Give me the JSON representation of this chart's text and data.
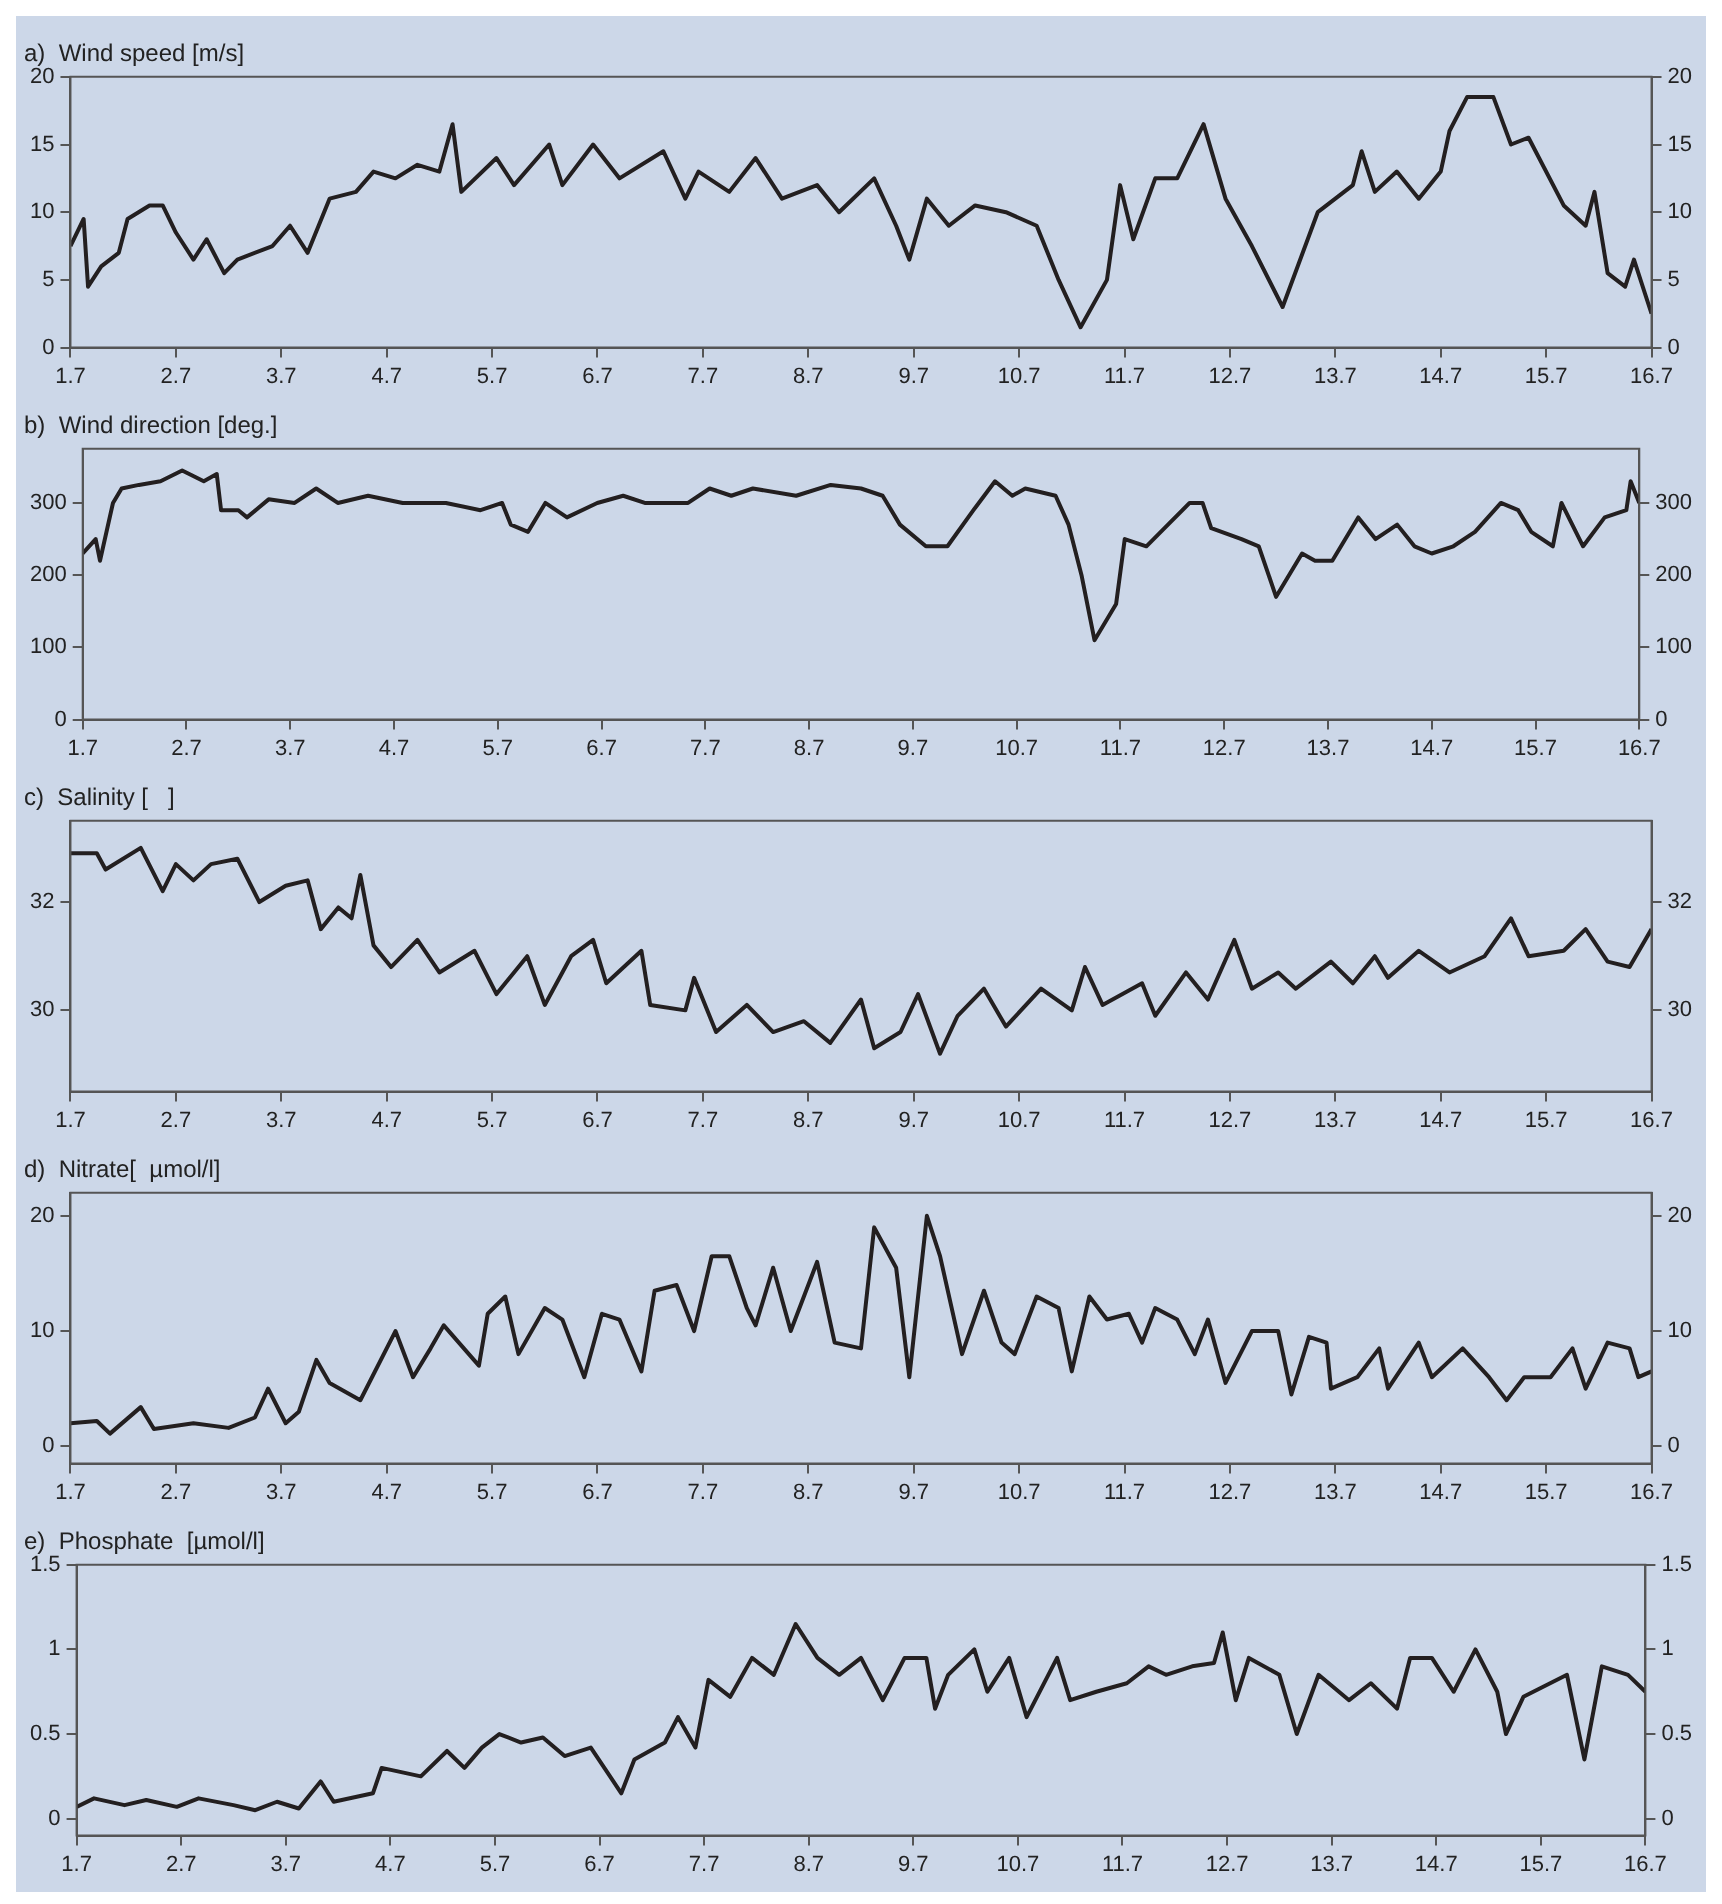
{
  "chart_data": [
    {
      "type": "line",
      "title": "a)  Wind speed [m/s]",
      "color": "#231f20",
      "x": [
        "--07-01T00:00",
        "--07-01T03:00",
        "--07-01T04:00",
        "--07-01T07:00",
        "--07-01T11:00",
        "--07-01T13:00",
        "--07-01T18:00",
        "--07-01T21:00",
        "--07-02T00:00",
        "--07-02T04:00",
        "--07-02T07:00",
        "--07-02T11:00",
        "--07-02T14:00",
        "--07-02T22:00",
        "--07-03T02:00",
        "--07-03T06:00",
        "--07-03T11:00",
        "--07-03T17:00",
        "--07-03T21:00",
        "--07-04T02:00",
        "--07-04T07:00",
        "--07-04T12:00",
        "--07-04T15:00",
        "--07-04T17:00",
        "--07-05T01:00",
        "--07-05T05:00",
        "--07-05T13:00",
        "--07-05T16:00",
        "--07-05T23:00",
        "--07-06T05:00",
        "--07-06T15:00",
        "--07-06T20:00",
        "--07-06T23:00",
        "--07-07T06:00",
        "--07-07T12:00",
        "--07-07T18:00",
        "--07-08T02:00",
        "--07-08T07:00",
        "--07-08T15:00",
        "--07-08T20:00",
        "--07-08T23:00",
        "--07-09T03:00",
        "--07-09T08:00",
        "--07-09T14:00",
        "--07-09T21:00",
        "--07-10T04:00",
        "--07-10T09:00",
        "--07-10T14:00",
        "--07-10T20:00",
        "--07-10T23:00",
        "--07-11T02:00",
        "--07-11T07:00",
        "--07-11T12:00",
        "--07-11T18:00",
        "--07-11T23:00",
        "--07-12T05:00",
        "--07-12T12:00",
        "--07-12T20:00",
        "--07-13T04:00",
        "--07-13T06:00",
        "--07-13T09:00",
        "--07-13T14:00",
        "--07-13T19:00",
        "--07-14T00:00",
        "--07-14T02:00",
        "--07-14T06:00",
        "--07-14T12:00",
        "--07-14T16:00",
        "--07-14T20:00",
        "--07-15T04:00",
        "--07-15T09:00",
        "--07-15T11:00",
        "--07-15T14:00",
        "--07-15T18:00",
        "--07-15T20:00",
        "--07-16T00:00"
      ],
      "values": [
        7.5,
        9.5,
        4.5,
        6,
        7,
        9.5,
        10.5,
        10.5,
        8.5,
        6.5,
        8,
        5.5,
        6.5,
        7.5,
        9,
        7,
        11,
        11.5,
        13,
        12.5,
        13.5,
        13,
        16.5,
        11.5,
        14,
        12,
        15,
        12,
        15,
        12.5,
        14.5,
        11,
        13,
        11.5,
        14,
        11,
        12,
        10,
        12.5,
        9,
        6.5,
        11,
        9,
        10.5,
        10,
        9,
        5,
        1.5,
        5,
        12,
        8,
        12.5,
        12.5,
        16.5,
        11,
        7.5,
        3,
        10,
        12,
        14.5,
        11.5,
        13,
        11,
        13,
        16,
        18.5,
        18.5,
        15,
        15.5,
        10.5,
        9,
        11.5,
        5.5,
        4.5,
        6.5,
        2.5
      ],
      "xlim": [
        "--07-01",
        "--07-16"
      ],
      "xticks": [
        {
          "value": "--07-01",
          "label": "1.7"
        },
        {
          "value": "--07-02",
          "label": "2.7"
        },
        {
          "value": "--07-03",
          "label": "3.7"
        },
        {
          "value": "--07-04",
          "label": "4.7"
        },
        {
          "value": "--07-05",
          "label": "5.7"
        },
        {
          "value": "--07-06",
          "label": "6.7"
        },
        {
          "value": "--07-07",
          "label": "7.7"
        },
        {
          "value": "--07-08",
          "label": "8.7"
        },
        {
          "value": "--07-09",
          "label": "9.7"
        },
        {
          "value": "--07-10",
          "label": "10.7"
        },
        {
          "value": "--07-11",
          "label": "11.7"
        },
        {
          "value": "--07-12",
          "label": "12.7"
        },
        {
          "value": "--07-13",
          "label": "13.7"
        },
        {
          "value": "--07-14",
          "label": "14.7"
        },
        {
          "value": "--07-15",
          "label": "15.7"
        },
        {
          "value": "--07-16",
          "label": "16.7"
        }
      ],
      "ylim": [
        0,
        20
      ],
      "yticks": [
        0,
        5,
        10,
        15,
        20
      ],
      "y2lim": [
        0,
        20
      ],
      "y2ticks": [
        0,
        5,
        10,
        15,
        20
      ]
    },
    {
      "type": "line",
      "title": "b)  Wind direction [deg.]",
      "color": "#231f20",
      "x": [
        "--07-01T00:00",
        "--07-01T03:00",
        "--07-01T04:00",
        "--07-01T07:00",
        "--07-01T09:00",
        "--07-01T13:00",
        "--07-01T18:00",
        "--07-01T23:00",
        "--07-02T04:00",
        "--07-02T07:00",
        "--07-02T08:00",
        "--07-02T12:00",
        "--07-02T14:00",
        "--07-02T19:00",
        "--07-03T01:00",
        "--07-03T06:00",
        "--07-03T11:00",
        "--07-03T18:00",
        "--07-04T02:00",
        "--07-04T12:00",
        "--07-04T20:00",
        "--07-05T01:00",
        "--07-05T03:00",
        "--07-05T07:00",
        "--07-05T11:00",
        "--07-05T16:00",
        "--07-05T23:00",
        "--07-06T05:00",
        "--07-06T10:00",
        "--07-06T20:00",
        "--07-07T01:00",
        "--07-07T06:00",
        "--07-07T11:00",
        "--07-07T21:00",
        "--07-08T05:00",
        "--07-08T12:00",
        "--07-08T17:00",
        "--07-08T21:00",
        "--07-09T03:00",
        "--07-09T08:00",
        "--07-09T14:00",
        "--07-09T19:00",
        "--07-09T23:00",
        "--07-10T02:00",
        "--07-10T09:00",
        "--07-10T12:00",
        "--07-10T15:00",
        "--07-10T18:00",
        "--07-10T23:00",
        "--07-11T01:00",
        "--07-11T06:00",
        "--07-11T11:00",
        "--07-11T16:00",
        "--07-11T19:00",
        "--07-11T21:00",
        "--07-12T04:00",
        "--07-12T08:00",
        "--07-12T12:00",
        "--07-12T18:00",
        "--07-12T21:00",
        "--07-13T01:00",
        "--07-13T07:00",
        "--07-13T11:00",
        "--07-13T16:00",
        "--07-13T20:00",
        "--07-14T00:00",
        "--07-14T05:00",
        "--07-14T10:00",
        "--07-14T16:00",
        "--07-14T20:00",
        "--07-14T23:00",
        "--07-15T04:00",
        "--07-15T06:00",
        "--07-15T11:00",
        "--07-15T16:00",
        "--07-15T21:00",
        "--07-15T22:00",
        "--07-16T00:00"
      ],
      "values": [
        230,
        250,
        220,
        300,
        320,
        325,
        330,
        345,
        330,
        340,
        290,
        290,
        280,
        305,
        300,
        320,
        300,
        310,
        300,
        300,
        290,
        300,
        270,
        260,
        300,
        280,
        300,
        310,
        300,
        300,
        320,
        310,
        320,
        310,
        325,
        320,
        310,
        270,
        240,
        240,
        290,
        330,
        310,
        320,
        310,
        270,
        200,
        110,
        160,
        250,
        240,
        270,
        300,
        300,
        265,
        250,
        240,
        170,
        230,
        220,
        220,
        280,
        250,
        270,
        240,
        230,
        240,
        260,
        300,
        290,
        260,
        240,
        300,
        240,
        280,
        290,
        330,
        300
      ],
      "xlim": [
        "--07-01",
        "--07-16"
      ],
      "xticks": [
        {
          "value": "--07-01",
          "label": "1.7"
        },
        {
          "value": "--07-02",
          "label": "2.7"
        },
        {
          "value": "--07-03",
          "label": "3.7"
        },
        {
          "value": "--07-04",
          "label": "4.7"
        },
        {
          "value": "--07-05",
          "label": "5.7"
        },
        {
          "value": "--07-06",
          "label": "6.7"
        },
        {
          "value": "--07-07",
          "label": "7.7"
        },
        {
          "value": "--07-08",
          "label": "8.7"
        },
        {
          "value": "--07-09",
          "label": "9.7"
        },
        {
          "value": "--07-10",
          "label": "10.7"
        },
        {
          "value": "--07-11",
          "label": "11.7"
        },
        {
          "value": "--07-12",
          "label": "12.7"
        },
        {
          "value": "--07-13",
          "label": "13.7"
        },
        {
          "value": "--07-14",
          "label": "14.7"
        },
        {
          "value": "--07-15",
          "label": "15.7"
        },
        {
          "value": "--07-16",
          "label": "16.7"
        }
      ],
      "ylim": [
        0,
        375
      ],
      "yticks": [
        0,
        100,
        200,
        300
      ],
      "y2lim": [
        0,
        375
      ],
      "y2ticks": [
        0,
        100,
        200,
        300
      ]
    },
    {
      "type": "line",
      "title": "c)  Salinity [   ]",
      "color": "#231f20",
      "x": [
        "--07-01T00:00",
        "--07-01T06:00",
        "--07-01T08:00",
        "--07-01T16:00",
        "--07-01T21:00",
        "--07-02T00:00",
        "--07-02T04:00",
        "--07-02T08:00",
        "--07-02T14:00",
        "--07-02T19:00",
        "--07-03T01:00",
        "--07-03T06:00",
        "--07-03T09:00",
        "--07-03T13:00",
        "--07-03T16:00",
        "--07-03T18:00",
        "--07-03T21:00",
        "--07-04T01:00",
        "--07-04T07:00",
        "--07-04T12:00",
        "--07-04T20:00",
        "--07-05T01:00",
        "--07-05T08:00",
        "--07-05T12:00",
        "--07-05T18:00",
        "--07-05T23:00",
        "--07-06T02:00",
        "--07-06T10:00",
        "--07-06T12:00",
        "--07-06T20:00",
        "--07-06T22:00",
        "--07-07T03:00",
        "--07-07T10:00",
        "--07-07T16:00",
        "--07-07T23:00",
        "--07-08T05:00",
        "--07-08T12:00",
        "--07-08T15:00",
        "--07-08T21:00",
        "--07-09T01:00",
        "--07-09T06:00",
        "--07-09T10:00",
        "--07-09T16:00",
        "--07-09T21:00",
        "--07-10T05:00",
        "--07-10T12:00",
        "--07-10T15:00",
        "--07-10T19:00",
        "--07-11T04:00",
        "--07-11T07:00",
        "--07-11T14:00",
        "--07-11T19:00",
        "--07-12T01:00",
        "--07-12T05:00",
        "--07-12T11:00",
        "--07-12T15:00",
        "--07-12T23:00",
        "--07-13T04:00",
        "--07-13T09:00",
        "--07-13T12:00",
        "--07-13T19:00",
        "--07-14T02:00",
        "--07-14T10:00",
        "--07-14T16:00",
        "--07-14T20:00",
        "--07-15T04:00",
        "--07-15T09:00",
        "--07-15T14:00",
        "--07-15T19:00",
        "--07-16T00:00"
      ],
      "values": [
        32.9,
        32.9,
        32.6,
        33.0,
        32.2,
        32.7,
        32.4,
        32.7,
        32.8,
        32.0,
        32.3,
        32.4,
        31.5,
        31.9,
        31.7,
        32.5,
        31.2,
        30.8,
        31.3,
        30.7,
        31.1,
        30.3,
        31.0,
        30.1,
        31.0,
        31.3,
        30.5,
        31.1,
        30.1,
        30.0,
        30.6,
        29.6,
        30.1,
        29.6,
        29.8,
        29.4,
        30.2,
        29.3,
        29.6,
        30.3,
        29.2,
        29.9,
        30.4,
        29.7,
        30.4,
        30.0,
        30.8,
        30.1,
        30.5,
        29.9,
        30.7,
        30.2,
        31.3,
        30.4,
        30.7,
        30.4,
        30.9,
        30.5,
        31.0,
        30.6,
        31.1,
        30.7,
        31.0,
        31.7,
        31.0,
        31.1,
        31.5,
        30.9,
        30.8,
        31.5
      ],
      "xlim": [
        "--07-01",
        "--07-16"
      ],
      "xticks": [
        {
          "value": "--07-01",
          "label": "1.7"
        },
        {
          "value": "--07-02",
          "label": "2.7"
        },
        {
          "value": "--07-03",
          "label": "3.7"
        },
        {
          "value": "--07-04",
          "label": "4.7"
        },
        {
          "value": "--07-05",
          "label": "5.7"
        },
        {
          "value": "--07-06",
          "label": "6.7"
        },
        {
          "value": "--07-07",
          "label": "7.7"
        },
        {
          "value": "--07-08",
          "label": "8.7"
        },
        {
          "value": "--07-09",
          "label": "9.7"
        },
        {
          "value": "--07-10",
          "label": "10.7"
        },
        {
          "value": "--07-11",
          "label": "11.7"
        },
        {
          "value": "--07-12",
          "label": "12.7"
        },
        {
          "value": "--07-13",
          "label": "13.7"
        },
        {
          "value": "--07-14",
          "label": "14.7"
        },
        {
          "value": "--07-15",
          "label": "15.7"
        },
        {
          "value": "--07-16",
          "label": "16.7"
        }
      ],
      "ylim": [
        28.5,
        33.5
      ],
      "yticks": [
        30,
        32
      ],
      "y2lim": [
        28.5,
        33.5
      ],
      "y2ticks": [
        30,
        32
      ]
    },
    {
      "type": "line",
      "title": "d)  Nitrate[  µmol/l]",
      "color": "#231f20",
      "x": [
        "--07-01T00:00",
        "--07-01T06:00",
        "--07-01T09:00",
        "--07-01T16:00",
        "--07-01T19:00",
        "--07-02T04:00",
        "--07-02T12:00",
        "--07-02T18:00",
        "--07-02T21:00",
        "--07-03T01:00",
        "--07-03T04:00",
        "--07-03T08:00",
        "--07-03T11:00",
        "--07-03T18:00",
        "--07-04T02:00",
        "--07-04T06:00",
        "--07-04T10:00",
        "--07-04T13:00",
        "--07-04T21:00",
        "--07-04T23:00",
        "--07-05T03:00",
        "--07-05T06:00",
        "--07-05T12:00",
        "--07-05T16:00",
        "--07-05T21:00",
        "--07-06T01:00",
        "--07-06T05:00",
        "--07-06T10:00",
        "--07-06T13:00",
        "--07-06T18:00",
        "--07-06T22:00",
        "--07-07T02:00",
        "--07-07T06:00",
        "--07-07T10:00",
        "--07-07T12:00",
        "--07-07T16:00",
        "--07-07T20:00",
        "--07-08T02:00",
        "--07-08T06:00",
        "--07-08T12:00",
        "--07-08T15:00",
        "--07-08T20:00",
        "--07-08T23:00",
        "--07-09T03:00",
        "--07-09T06:00",
        "--07-09T11:00",
        "--07-09T16:00",
        "--07-09T20:00",
        "--07-09T23:00",
        "--07-10T04:00",
        "--07-10T09:00",
        "--07-10T12:00",
        "--07-10T16:00",
        "--07-10T20:00",
        "--07-11T01:00",
        "--07-11T04:00",
        "--07-11T07:00",
        "--07-11T12:00",
        "--07-11T16:00",
        "--07-11T19:00",
        "--07-11T23:00",
        "--07-12T05:00",
        "--07-12T11:00",
        "--07-12T14:00",
        "--07-12T18:00",
        "--07-12T22:00",
        "--07-12T23:00",
        "--07-13T05:00",
        "--07-13T10:00",
        "--07-13T12:00",
        "--07-13T19:00",
        "--07-13T22:00",
        "--07-14T05:00",
        "--07-14T11:00",
        "--07-14T15:00",
        "--07-14T19:00",
        "--07-15T01:00",
        "--07-15T06:00",
        "--07-15T09:00",
        "--07-15T14:00",
        "--07-15T19:00",
        "--07-15T21:00",
        "--07-16T00:00"
      ],
      "values": [
        2,
        2.2,
        1.1,
        3.4,
        1.5,
        2,
        1.6,
        2.5,
        5,
        2,
        3,
        7.5,
        5.5,
        4,
        10,
        6,
        8.5,
        10.5,
        7,
        11.5,
        13,
        8,
        12,
        11,
        6,
        11.5,
        11,
        6.5,
        13.5,
        14,
        10,
        16.5,
        16.5,
        12,
        10.5,
        15.5,
        10,
        16,
        9,
        8.5,
        19,
        15.5,
        6,
        20,
        16.5,
        8,
        13.5,
        9,
        8,
        13,
        12,
        6.5,
        13,
        11,
        11.5,
        9,
        12,
        11,
        8,
        11,
        5.5,
        10,
        10,
        4.5,
        9.5,
        9,
        5,
        6,
        8.5,
        5,
        9,
        6,
        8.5,
        6,
        4,
        6,
        6,
        8.5,
        5,
        9,
        8.5,
        6,
        6.5
      ],
      "xlim": [
        "--07-01",
        "--07-16"
      ],
      "xticks": [
        {
          "value": "--07-01",
          "label": "1.7"
        },
        {
          "value": "--07-02",
          "label": "2.7"
        },
        {
          "value": "--07-03",
          "label": "3.7"
        },
        {
          "value": "--07-04",
          "label": "4.7"
        },
        {
          "value": "--07-05",
          "label": "5.7"
        },
        {
          "value": "--07-06",
          "label": "6.7"
        },
        {
          "value": "--07-07",
          "label": "7.7"
        },
        {
          "value": "--07-08",
          "label": "8.7"
        },
        {
          "value": "--07-09",
          "label": "9.7"
        },
        {
          "value": "--07-10",
          "label": "10.7"
        },
        {
          "value": "--07-11",
          "label": "11.7"
        },
        {
          "value": "--07-12",
          "label": "12.7"
        },
        {
          "value": "--07-13",
          "label": "13.7"
        },
        {
          "value": "--07-14",
          "label": "14.7"
        },
        {
          "value": "--07-15",
          "label": "15.7"
        },
        {
          "value": "--07-16",
          "label": "16.7"
        }
      ],
      "ylim": [
        -1.5,
        22
      ],
      "yticks": [
        0,
        10,
        20
      ],
      "y2lim": [
        -1.5,
        22
      ],
      "y2ticks": [
        0,
        10,
        20
      ]
    },
    {
      "type": "line",
      "title": "e)  Phosphate  [µmol/l]",
      "color": "#231f20",
      "x": [
        "--07-01T00:00",
        "--07-01T04:00",
        "--07-01T11:00",
        "--07-01T16:00",
        "--07-01T23:00",
        "--07-02T04:00",
        "--07-02T12:00",
        "--07-02T17:00",
        "--07-02T22:00",
        "--07-03T03:00",
        "--07-03T08:00",
        "--07-03T11:00",
        "--07-03T20:00",
        "--07-03T22:00",
        "--07-04T07:00",
        "--07-04T13:00",
        "--07-04T17:00",
        "--07-04T21:00",
        "--07-05T01:00",
        "--07-05T06:00",
        "--07-05T11:00",
        "--07-05T16:00",
        "--07-05T22:00",
        "--07-06T05:00",
        "--07-06T08:00",
        "--07-06T15:00",
        "--07-06T18:00",
        "--07-06T22:00",
        "--07-07T01:00",
        "--07-07T06:00",
        "--07-07T11:00",
        "--07-07T16:00",
        "--07-07T21:00",
        "--07-08T02:00",
        "--07-08T07:00",
        "--07-08T12:00",
        "--07-08T17:00",
        "--07-08T22:00",
        "--07-09T03:00",
        "--07-09T05:00",
        "--07-09T08:00",
        "--07-09T14:00",
        "--07-09T17:00",
        "--07-09T22:00",
        "--07-10T02:00",
        "--07-10T09:00",
        "--07-10T12:00",
        "--07-10T18:00",
        "--07-11T01:00",
        "--07-11T06:00",
        "--07-11T10:00",
        "--07-11T16:00",
        "--07-11T21:00",
        "--07-11T23:00",
        "--07-12T02:00",
        "--07-12T05:00",
        "--07-12T12:00",
        "--07-12T16:00",
        "--07-12T21:00",
        "--07-13T04:00",
        "--07-13T09:00",
        "--07-13T15:00",
        "--07-13T18:00",
        "--07-13T23:00",
        "--07-14T04:00",
        "--07-14T09:00",
        "--07-14T14:00",
        "--07-14T16:00",
        "--07-14T20:00",
        "--07-15T06:00",
        "--07-15T10:00",
        "--07-15T14:00",
        "--07-15T20:00",
        "--07-16T00:00"
      ],
      "values": [
        0.07,
        0.12,
        0.08,
        0.11,
        0.07,
        0.12,
        0.08,
        0.05,
        0.1,
        0.06,
        0.22,
        0.1,
        0.15,
        0.3,
        0.25,
        0.4,
        0.3,
        0.42,
        0.5,
        0.45,
        0.48,
        0.37,
        0.42,
        0.15,
        0.35,
        0.45,
        0.6,
        0.42,
        0.82,
        0.72,
        0.95,
        0.85,
        1.15,
        0.95,
        0.85,
        0.95,
        0.7,
        0.95,
        0.95,
        0.65,
        0.85,
        1.0,
        0.75,
        0.95,
        0.6,
        0.95,
        0.7,
        0.75,
        0.8,
        0.9,
        0.85,
        0.9,
        0.92,
        1.1,
        0.7,
        0.95,
        0.85,
        0.5,
        0.85,
        0.7,
        0.8,
        0.65,
        0.95,
        0.95,
        0.75,
        1.0,
        0.75,
        0.5,
        0.72,
        0.85,
        0.35,
        0.9,
        0.85,
        0.75
      ],
      "xlim": [
        "--07-01",
        "--07-16"
      ],
      "xticks": [
        {
          "value": "--07-01",
          "label": "1.7"
        },
        {
          "value": "--07-02",
          "label": "2.7"
        },
        {
          "value": "--07-03",
          "label": "3.7"
        },
        {
          "value": "--07-04",
          "label": "4.7"
        },
        {
          "value": "--07-05",
          "label": "5.7"
        },
        {
          "value": "--07-06",
          "label": "6.7"
        },
        {
          "value": "--07-07",
          "label": "7.7"
        },
        {
          "value": "--07-08",
          "label": "8.7"
        },
        {
          "value": "--07-09",
          "label": "9.7"
        },
        {
          "value": "--07-10",
          "label": "10.7"
        },
        {
          "value": "--07-11",
          "label": "11.7"
        },
        {
          "value": "--07-12",
          "label": "12.7"
        },
        {
          "value": "--07-13",
          "label": "13.7"
        },
        {
          "value": "--07-14",
          "label": "14.7"
        },
        {
          "value": "--07-15",
          "label": "15.7"
        },
        {
          "value": "--07-16",
          "label": "16.7"
        }
      ],
      "ylim": [
        -0.1,
        1.5
      ],
      "yticks": [
        0,
        0.5,
        1,
        1.5
      ],
      "y2lim": [
        -0.1,
        1.5
      ],
      "y2ticks": [
        0,
        0.5,
        1,
        1.5
      ]
    }
  ]
}
